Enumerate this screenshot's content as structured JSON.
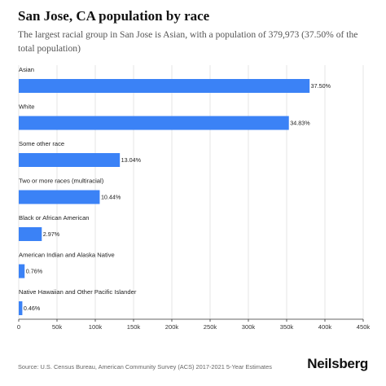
{
  "header": {
    "title": "San Jose, CA population by race",
    "subtitle": "The largest racial group in San Jose is Asian, with a population of 379,973 (37.50% of the total population)"
  },
  "colors": {
    "bar": "#3b82f6",
    "grid": "#e6e6e6",
    "axis": "#333333"
  },
  "chart_data": {
    "type": "bar",
    "orientation": "horizontal",
    "categories": [
      "Asian",
      "White",
      "Some other race",
      "Two or more races (multiracial)",
      "Black or African American",
      "American Indian and Alaska Native",
      "Native Hawaiian and Other Pacific Islander"
    ],
    "values": [
      379973,
      352900,
      132100,
      105800,
      30100,
      7700,
      4700
    ],
    "value_labels": [
      "37.50%",
      "34.83%",
      "13.04%",
      "10.44%",
      "2.97%",
      "0.76%",
      "0.46%"
    ],
    "xlim": [
      0,
      450000
    ],
    "xticks": [
      0,
      50000,
      100000,
      150000,
      200000,
      250000,
      300000,
      350000,
      400000,
      450000
    ],
    "xtick_labels": [
      "0",
      "50k",
      "100k",
      "150k",
      "200k",
      "250k",
      "300k",
      "350k",
      "400k",
      "450k"
    ],
    "grid": true,
    "legend": "none"
  },
  "footer": {
    "source": "Source: U.S. Census Bureau, American Community Survey (ACS) 2017-2021 5-Year Estimates",
    "brand": "Neilsberg"
  }
}
